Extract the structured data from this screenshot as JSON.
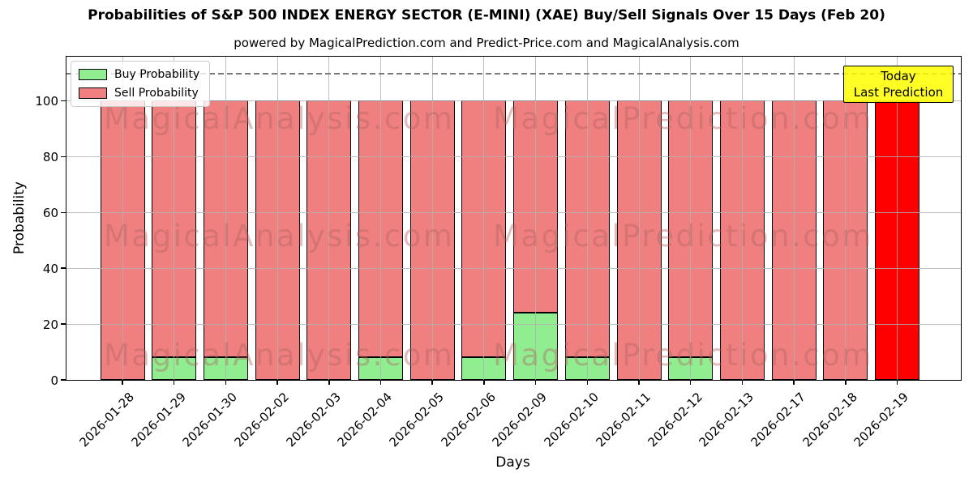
{
  "chart_data": {
    "type": "bar",
    "stacked": true,
    "title": "Probabilities of S&P 500 INDEX ENERGY SECTOR (E-MINI) (XAE) Buy/Sell Signals Over 15 Days (Feb 20)",
    "subtitle": "powered by MagicalPrediction.com and Predict-Price.com and MagicalAnalysis.com",
    "xlabel": "Days",
    "ylabel": "Probability",
    "categories": [
      "2026-01-28",
      "2026-01-29",
      "2026-01-30",
      "2026-02-02",
      "2026-02-03",
      "2026-02-04",
      "2026-02-05",
      "2026-02-06",
      "2026-02-09",
      "2026-02-10",
      "2026-02-11",
      "2026-02-12",
      "2026-02-13",
      "2026-02-17",
      "2026-02-18",
      "2026-02-19"
    ],
    "series": [
      {
        "name": "Buy Probability",
        "color": "#90EE90",
        "values": [
          0,
          8,
          8,
          0,
          0,
          8,
          0,
          8,
          24,
          8,
          0,
          8,
          0,
          0,
          0,
          0
        ]
      },
      {
        "name": "Sell Probability",
        "color": "#F08080",
        "values": [
          100,
          92,
          92,
          100,
          100,
          92,
          100,
          92,
          76,
          92,
          100,
          92,
          100,
          100,
          100,
          100
        ]
      }
    ],
    "bar_edge_color": "#000000",
    "today_bar": {
      "index": 15,
      "color": "#FF0000"
    },
    "ylim": [
      0,
      115.8
    ],
    "yticks": [
      0,
      20,
      40,
      60,
      80,
      100
    ],
    "dashed_line_y": 110,
    "grid": true,
    "legend_position": "upper left"
  },
  "annotation": {
    "line1": "Today",
    "line2": "Last Prediction",
    "bg_color": "#FFFF00"
  },
  "watermark": {
    "texts": [
      "MagicalAnalysis.com",
      "MagicalPrediction.com"
    ]
  }
}
